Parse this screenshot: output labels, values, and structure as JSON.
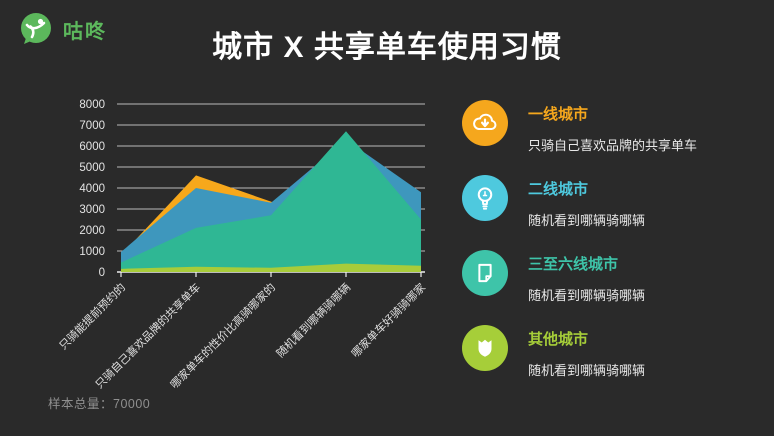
{
  "page": {
    "background": "#2a2a2a"
  },
  "header": {
    "logo_text": "咕咚",
    "brand_color": "#5cb85c",
    "title": "城市 X 共享单车使用习惯"
  },
  "chart_data": {
    "type": "area",
    "overlapping": true,
    "categories": [
      "只骑能提前预约的",
      "只骑自己喜欢品牌的共享单车",
      "哪家单车的性价比高骑哪家的",
      "随机看到哪辆骑哪辆",
      "哪家单车好骑骑哪家"
    ],
    "series": [
      {
        "name": "一线城市",
        "color": "#f7a81b",
        "values": [
          800,
          4600,
          3350,
          2000,
          1500
        ]
      },
      {
        "name": "二线城市",
        "color": "#3e97bd",
        "values": [
          950,
          4000,
          3300,
          6300,
          3800
        ]
      },
      {
        "name": "三至六线城市",
        "color": "#2fb794",
        "values": [
          450,
          2100,
          2700,
          6700,
          2500
        ]
      },
      {
        "name": "其他城市",
        "color": "#a8cc3a",
        "values": [
          150,
          250,
          200,
          400,
          300
        ]
      }
    ],
    "ylim": [
      0,
      8000
    ],
    "ytick_step": 1000,
    "grid": true,
    "legend_position": "right"
  },
  "legend": {
    "items": [
      {
        "title": "一线城市",
        "desc": "只骑自己喜欢品牌的共享单车",
        "color": "#f5a71d",
        "icon": "cloud-download-icon"
      },
      {
        "title": "二线城市",
        "desc": "随机看到哪辆骑哪辆",
        "color": "#4ec9de",
        "icon": "lightbulb-icon"
      },
      {
        "title": "三至六线城市",
        "desc": "随机看到哪辆骑哪辆",
        "color": "#3ec4a9",
        "icon": "document-icon"
      },
      {
        "title": "其他城市",
        "desc": "随机看到哪辆骑哪辆",
        "color": "#a6ce39",
        "icon": "shield-icon"
      }
    ]
  },
  "footer": {
    "sample_label": "样本总量：70000"
  }
}
